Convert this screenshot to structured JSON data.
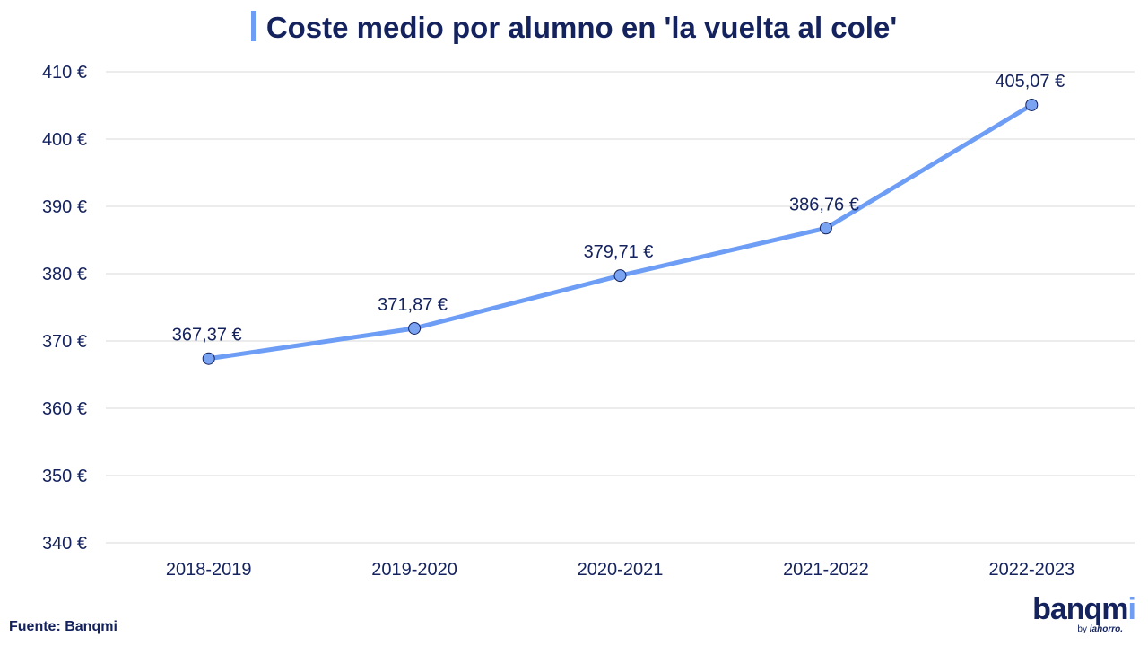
{
  "colors": {
    "title": "#14225e",
    "line": "#6d9df5",
    "marker_fill": "#7aa3f2",
    "marker_stroke": "#14225e",
    "grid": "#d9d9d9",
    "accent_bar": "#6d9df5"
  },
  "chart_data": {
    "type": "line",
    "title": "Coste medio por alumno en 'la vuelta al cole'",
    "categories": [
      "2018-2019",
      "2019-2020",
      "2020-2021",
      "2021-2022",
      "2022-2023"
    ],
    "values": [
      367.37,
      371.87,
      379.71,
      386.76,
      405.07
    ],
    "data_labels": [
      "367,37 €",
      "371,87 €",
      "379,71 €",
      "386,76 €",
      "405,07 €"
    ],
    "ylim": [
      340,
      410
    ],
    "yticks": [
      340,
      350,
      360,
      370,
      380,
      390,
      400,
      410
    ],
    "ytick_labels": [
      "340 €",
      "350 €",
      "360 €",
      "370 €",
      "380 €",
      "390 €",
      "400 €",
      "410 €"
    ],
    "grid": true,
    "legend": "none"
  },
  "footer": {
    "source": "Fuente: Banqmi"
  },
  "logo": {
    "word_main": "banqm",
    "word_accent": "i",
    "byline_prefix": "by",
    "byline_brand": "iahorro."
  }
}
